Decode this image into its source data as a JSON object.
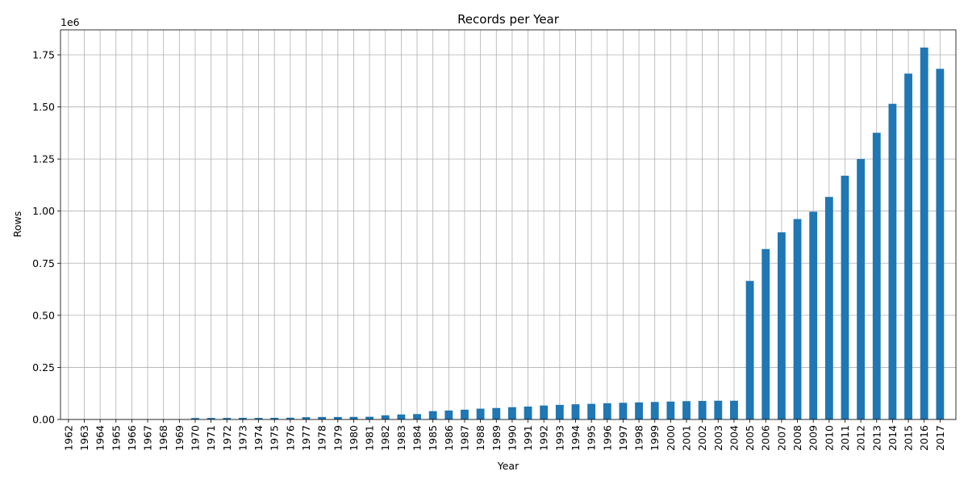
{
  "chart_data": {
    "type": "bar",
    "title": "Records per Year",
    "xlabel": "Year",
    "ylabel": "Rows",
    "y_offset_label": "1e6",
    "ylim": [
      0,
      1870000
    ],
    "yticks": [
      0,
      250000,
      500000,
      750000,
      1000000,
      1250000,
      1500000,
      1750000
    ],
    "ytick_labels": [
      "0.00",
      "0.25",
      "0.50",
      "0.75",
      "1.00",
      "1.25",
      "1.50",
      "1.75"
    ],
    "grid": true,
    "bar_color": "#1f77b4",
    "categories": [
      "1962",
      "1963",
      "1964",
      "1965",
      "1966",
      "1967",
      "1968",
      "1969",
      "1970",
      "1971",
      "1972",
      "1973",
      "1974",
      "1975",
      "1976",
      "1977",
      "1978",
      "1979",
      "1980",
      "1981",
      "1982",
      "1983",
      "1984",
      "1985",
      "1986",
      "1987",
      "1988",
      "1989",
      "1990",
      "1991",
      "1992",
      "1993",
      "1994",
      "1995",
      "1996",
      "1997",
      "1998",
      "1999",
      "2000",
      "2001",
      "2002",
      "2003",
      "2004",
      "2005",
      "2006",
      "2007",
      "2008",
      "2009",
      "2010",
      "2011",
      "2012",
      "2013",
      "2014",
      "2015",
      "2016",
      "2017"
    ],
    "values": [
      50,
      50,
      50,
      50,
      50,
      50,
      100,
      100,
      7000,
      7500,
      7500,
      8000,
      7500,
      8000,
      8500,
      11000,
      12000,
      12000,
      12500,
      13000,
      20000,
      24000,
      26000,
      40000,
      43000,
      47000,
      52000,
      55000,
      59000,
      62000,
      67000,
      70000,
      73000,
      75000,
      78000,
      80000,
      82000,
      84000,
      86000,
      88000,
      89000,
      90000,
      90000,
      665000,
      818000,
      898000,
      962000,
      997000,
      1068000,
      1170000,
      1250000,
      1376000,
      1515000,
      1660000,
      1785000,
      1683000
    ]
  }
}
